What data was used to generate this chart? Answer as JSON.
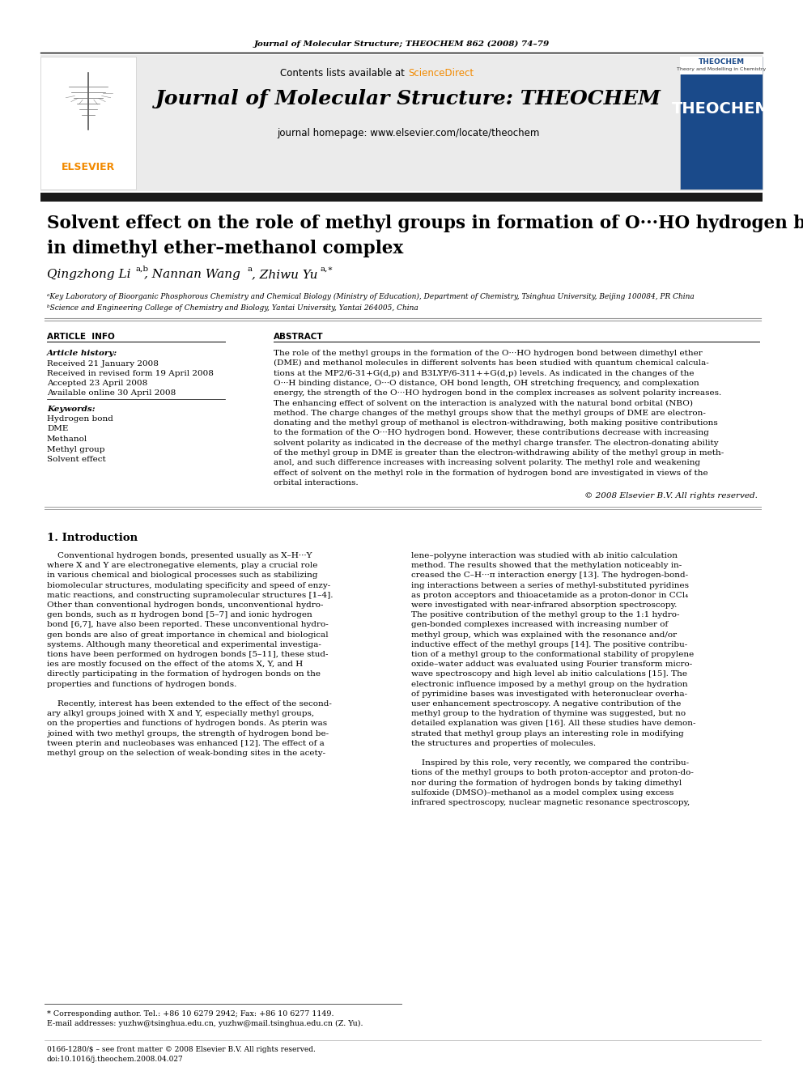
{
  "page_title": "Journal of Molecular Structure; THEOCHEM 862 (2008) 74–79",
  "journal_name": "Journal of Molecular Structure: THEOCHEM",
  "journal_homepage": "journal homepage: www.elsevier.com/locate/theochem",
  "contents_text": "Contents lists available at ScienceDirect",
  "article_title_line1": "Solvent effect on the role of methyl groups in formation of O···HO hydrogen bond",
  "article_title_line2": "in dimethyl ether–methanol complex",
  "affil_a": "ᵃKey Laboratory of Bioorganic Phosphorous Chemistry and Chemical Biology (Ministry of Education), Department of Chemistry, Tsinghua University, Beijing 100084, PR China",
  "affil_b": "ᵇScience and Engineering College of Chemistry and Biology, Yantai University, Yantai 264005, China",
  "article_info_header": "ARTICLE  INFO",
  "abstract_header": "ABSTRACT",
  "article_history_label": "Article history:",
  "received": "Received 21 January 2008",
  "received_revised": "Received in revised form 19 April 2008",
  "accepted": "Accepted 23 April 2008",
  "available": "Available online 30 April 2008",
  "keywords_label": "Keywords:",
  "keywords": [
    "Hydrogen bond",
    "DME",
    "Methanol",
    "Methyl group",
    "Solvent effect"
  ],
  "copyright": "© 2008 Elsevier B.V. All rights reserved.",
  "intro_header": "1. Introduction",
  "footnote_star": "* Corresponding author. Tel.: +86 10 6279 2942; Fax: +86 10 6277 1149.",
  "footnote_email": "E-mail addresses: yuzhw@tsinghua.edu.cn, yuzhw@mail.tsinghua.edu.cn (Z. Yu).",
  "footer_line1": "0166-1280/$ – see front matter © 2008 Elsevier B.V. All rights reserved.",
  "footer_line2": "doi:10.1016/j.theochem.2008.04.027",
  "bg_color": "#ffffff",
  "elsevier_color": "#f28a00",
  "sciencedirect_color": "#f28a00"
}
